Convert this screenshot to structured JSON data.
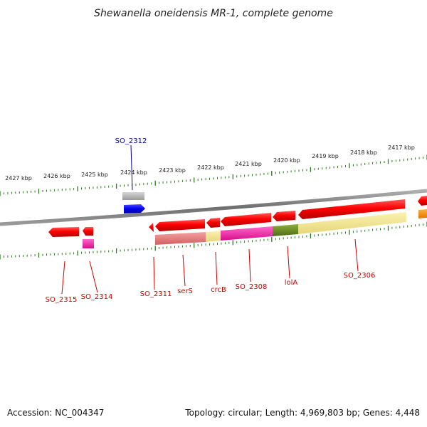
{
  "title": "Shewanella oneidensis MR-1, complete genome",
  "footer": {
    "accession": "Accession: NC_004347",
    "topology": "Topology: circular; Length: 4,969,803 bp; Genes: 4,448"
  },
  "colors": {
    "backbone": "#7a7a7a",
    "ticks": "#2e7d1f",
    "label_red": "#cc0000",
    "label_blue": "#000099"
  },
  "kbp_labels": [
    "2427 kbp",
    "2426 kbp",
    "2425 kbp",
    "2424 kbp",
    "2423 kbp",
    "2422 kbp",
    "2421 kbp",
    "2420 kbp",
    "2419 kbp",
    "2418 kbp",
    "2417 kbp"
  ],
  "gene_labels": [
    {
      "id": "so2312",
      "text": "SO_2312",
      "color": "blue"
    },
    {
      "id": "so2315",
      "text": "SO_2315",
      "color": "red"
    },
    {
      "id": "so2314",
      "text": "SO_2314",
      "color": "red"
    },
    {
      "id": "so2311",
      "text": "SO_2311",
      "color": "red"
    },
    {
      "id": "sers",
      "text": "serS",
      "color": "red"
    },
    {
      "id": "crcb",
      "text": "crcB",
      "color": "red"
    },
    {
      "id": "so2308",
      "text": "SO_2308",
      "color": "red"
    },
    {
      "id": "lola",
      "text": "lolA",
      "color": "red"
    },
    {
      "id": "so2306",
      "text": "SO_2306",
      "color": "red"
    }
  ]
}
